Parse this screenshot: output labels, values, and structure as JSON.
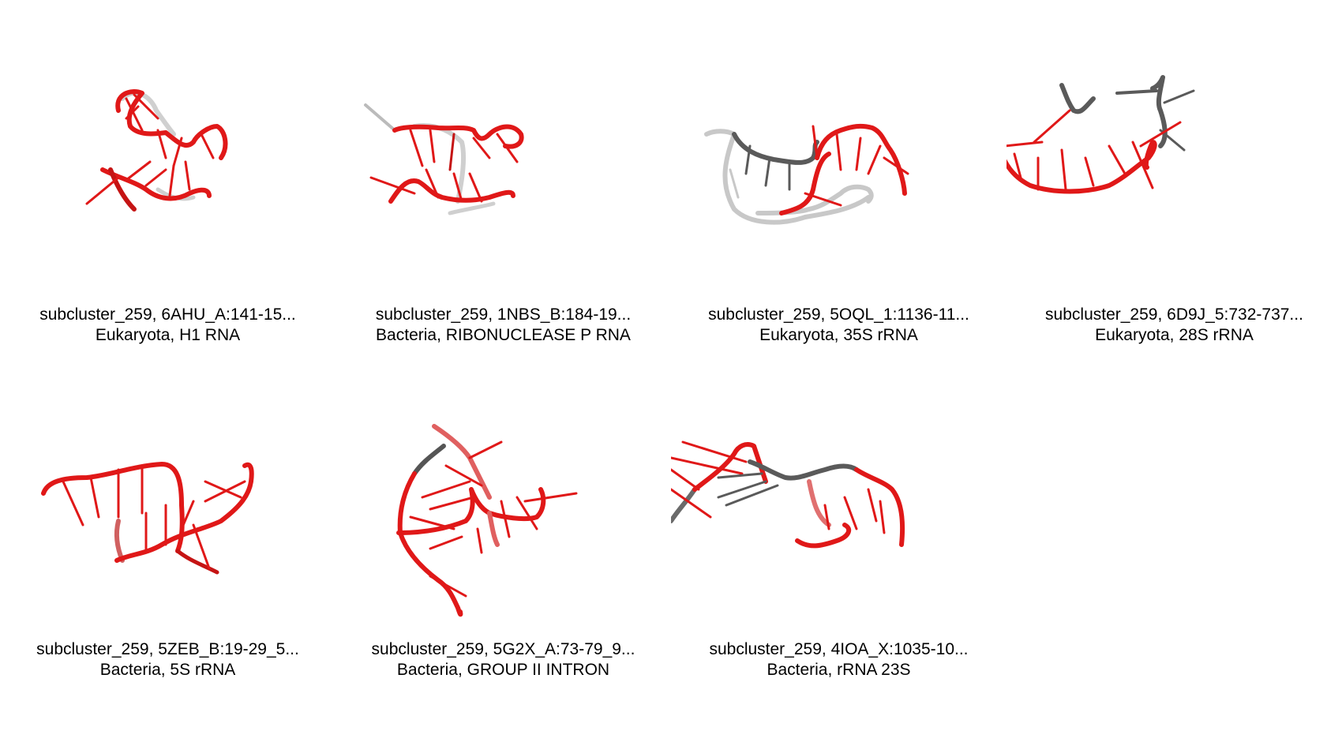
{
  "tiles": [
    {
      "line1": "subcluster_259, 6AHU_A:141-15...",
      "line2": "Eukaryota, H1 RNA"
    },
    {
      "line1": "subcluster_259, 1NBS_B:184-19...",
      "line2": "Bacteria, RIBONUCLEASE P RNA"
    },
    {
      "line1": "subcluster_259, 5OQL_1:1136-11...",
      "line2": "Eukaryota, 35S rRNA"
    },
    {
      "line1": "subcluster_259, 6D9J_5:732-737...",
      "line2": "Eukaryota, 28S rRNA"
    },
    {
      "line1": "subcluster_259, 5ZEB_B:19-29_5...",
      "line2": "Bacteria, 5S rRNA"
    },
    {
      "line1": "subcluster_259, 5G2X_A:73-79_9...",
      "line2": "Bacteria, GROUP II INTRON"
    },
    {
      "line1": "subcluster_259, 4IOA_X:1035-10...",
      "line2": "Bacteria, rRNA 23S"
    }
  ],
  "colors": {
    "highlight": "#e01818",
    "context_dark": "#5a5a5a",
    "context_light": "#c8c8c8"
  }
}
